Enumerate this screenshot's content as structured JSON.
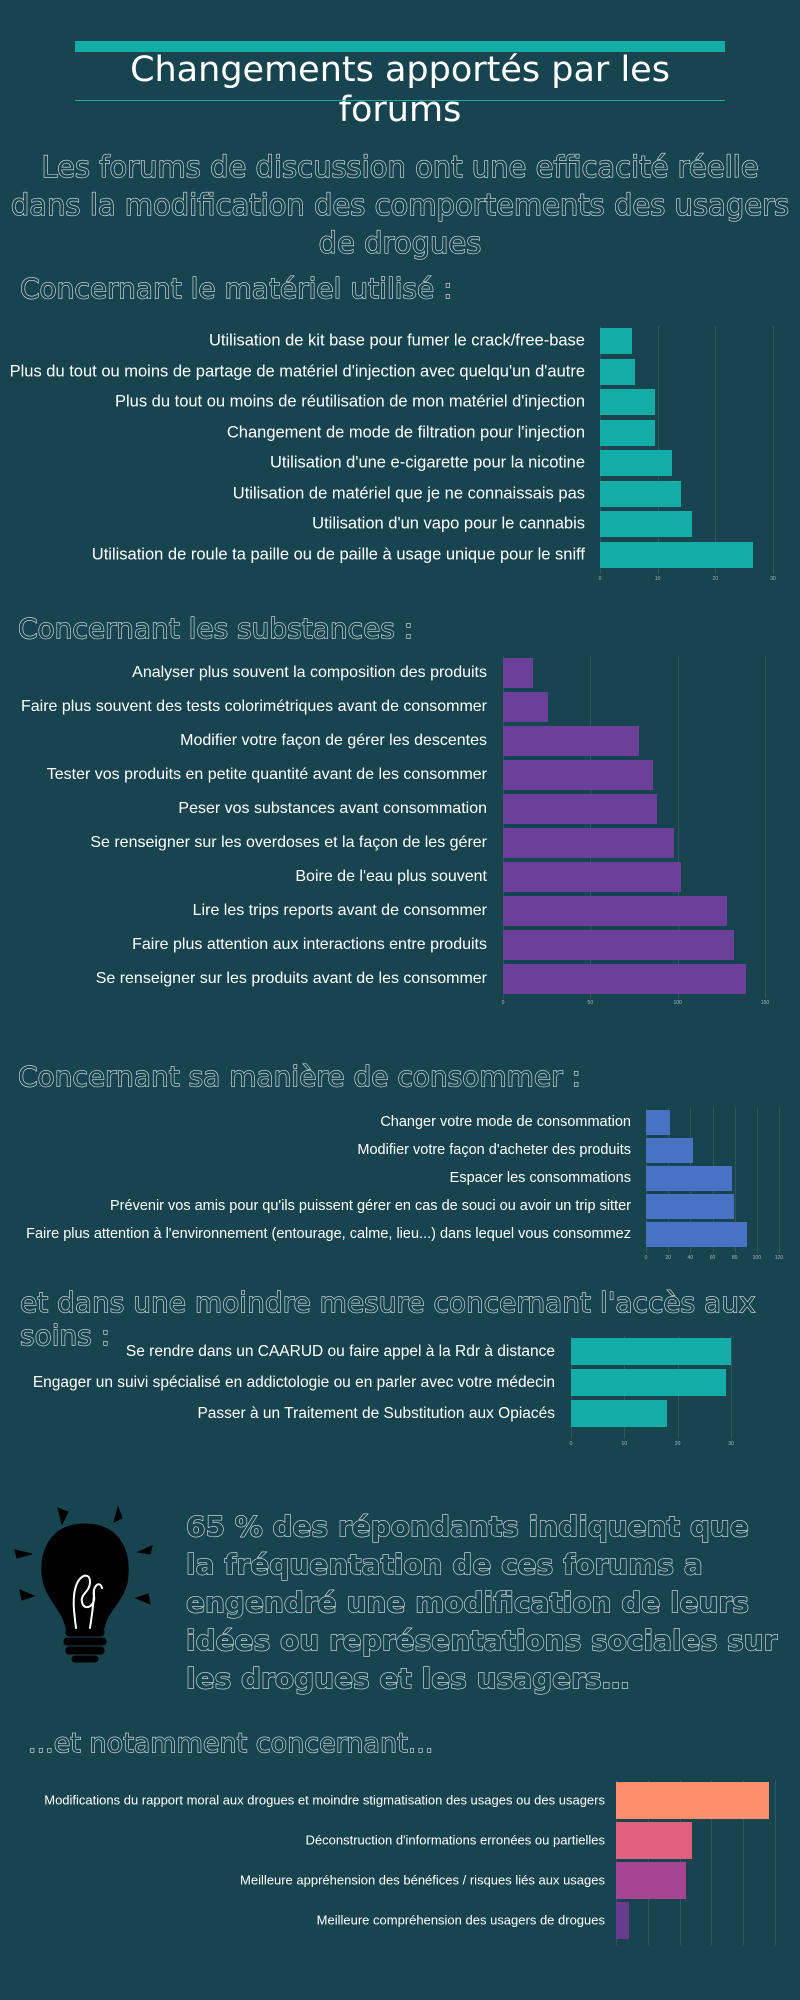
{
  "header": {
    "title": "Changements apportés par les forums",
    "lead": "Les forums de discussion ont une efficacité réelle dans la modification des comportements des usagers de drogues"
  },
  "colors": {
    "background": "#17444f",
    "teal": "#12ada6",
    "purple": "#6a409a",
    "blue": "#4a72c4"
  },
  "sections": {
    "materiel": {
      "heading": "Concernant le matériel utilisé :",
      "color": "#12ada6",
      "ticks": [
        "0",
        "10",
        "20",
        "30"
      ],
      "xmax": 30,
      "items": [
        {
          "label": "Utilisation de kit base pour fumer le crack/free-base",
          "value": 5.5
        },
        {
          "label": "Plus du tout ou moins de partage de matériel d'injection avec quelqu'un d'autre",
          "value": 6
        },
        {
          "label": "Plus du tout ou moins de réutilisation de mon matériel d'injection",
          "value": 9.5
        },
        {
          "label": "Changement de mode de filtration pour l'injection",
          "value": 9.5
        },
        {
          "label": "Utilisation d'une e-cigarette pour la nicotine",
          "value": 12.5
        },
        {
          "label": "Utilisation de matériel que je ne connaissais pas",
          "value": 14
        },
        {
          "label": "Utilisation d'un vapo pour le cannabis",
          "value": 16
        },
        {
          "label": "Utilisation de roule ta paille ou de paille à usage unique pour le sniff",
          "value": 26.5
        }
      ]
    },
    "substances": {
      "heading": "Concernant les substances :",
      "color": "#6a409a",
      "ticks": [
        "0",
        "50",
        "100",
        "150"
      ],
      "xmax": 150,
      "items": [
        {
          "label": "Analyser plus souvent la composition des produits",
          "value": 17
        },
        {
          "label": "Faire plus souvent des tests colorimétriques avant de consommer",
          "value": 26
        },
        {
          "label": "Modifier votre façon de gérer les descentes",
          "value": 78
        },
        {
          "label": "Tester vos produits en petite quantité avant de les consommer",
          "value": 86
        },
        {
          "label": "Peser vos substances avant consommation",
          "value": 88
        },
        {
          "label": "Se renseigner sur les overdoses et la façon de les gérer",
          "value": 98
        },
        {
          "label": "Boire de l'eau plus souvent",
          "value": 102
        },
        {
          "label": "Lire les trips reports avant de consommer",
          "value": 128
        },
        {
          "label": "Faire plus attention aux interactions entre produits",
          "value": 132
        },
        {
          "label": "Se renseigner sur les produits avant de les consommer",
          "value": 139
        }
      ]
    },
    "maniere": {
      "heading": "Concernant sa manière de consommer :",
      "color": "#4a72c4",
      "ticks": [
        "0",
        "20",
        "40",
        "60",
        "80",
        "100",
        "120"
      ],
      "xmax": 120,
      "items": [
        {
          "label": "Changer votre mode de consommation",
          "value": 22
        },
        {
          "label": "Modifier votre façon d'acheter des produits",
          "value": 42
        },
        {
          "label": "Espacer les consommations",
          "value": 78
        },
        {
          "label": "Prévenir vos amis pour qu'ils puissent gérer en cas de souci ou avoir un trip sitter",
          "value": 79
        },
        {
          "label": "Faire plus attention à l'environnement (entourage, calme, lieu...) dans lequel vous consommez",
          "value": 91
        }
      ]
    },
    "soins": {
      "heading": "et dans une moindre mesure concernant l'accès aux soins :",
      "color": "#12ada6",
      "ticks": [
        "0",
        "10",
        "20",
        "30"
      ],
      "xmax": 30,
      "items": [
        {
          "label": "Se rendre dans un CAARUD ou faire appel à la Rdr à distance",
          "value": 30
        },
        {
          "label": "Engager un suivi spécialisé en addictologie ou en parler avec votre médecin",
          "value": 29
        },
        {
          "label": "Passer à un Traitement de Substitution aux Opiacés",
          "value": 18
        }
      ]
    },
    "representations": {
      "heading": "...et notamment concernant...",
      "xmax": 50,
      "items": [
        {
          "label": "Modifications du rapport moral aux drogues et moindre stigmatisation des usages ou des usagers",
          "value": 48,
          "color": "#fb8f6b"
        },
        {
          "label": "Déconstruction d'informations erronées ou partielles",
          "value": 24,
          "color": "#e0607f"
        },
        {
          "label": "Meilleure appréhension des bénéfices / risques liés aux usages",
          "value": 22,
          "color": "#a74592"
        },
        {
          "label": "Meilleure compréhension des usagers de drogues",
          "value": 4,
          "color": "#6a3a8f"
        }
      ]
    }
  },
  "stat": {
    "text": "65 % des répondants indiquent que la fréquentation de ces forums a engendré une modification de leurs idées ou représentations sociales sur les drogues et les usagers…",
    "icon": "lightbulb-icon"
  }
}
